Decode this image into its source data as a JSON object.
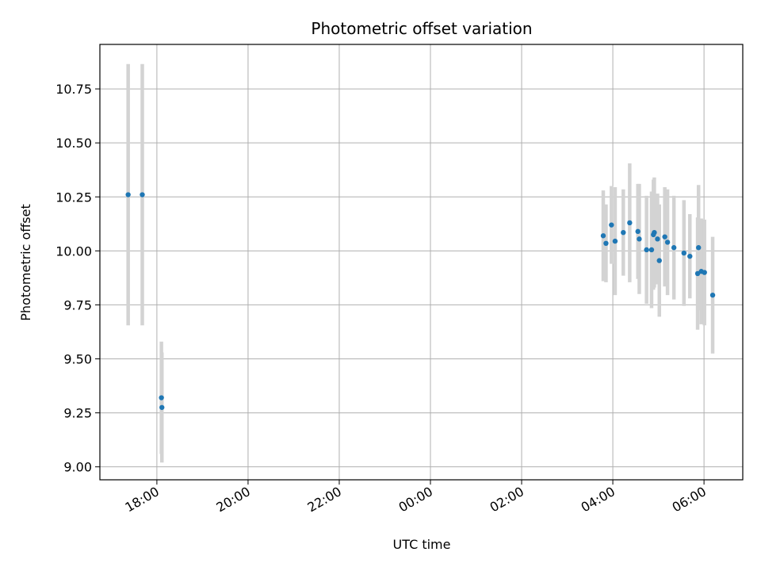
{
  "chart_data": {
    "type": "scatter",
    "title": "Photometric offset variation",
    "xlabel": "UTC time",
    "ylabel": "Photometric offset",
    "grid": true,
    "ylim": [
      8.94,
      10.956
    ],
    "xlim_hours": [
      -7.25,
      6.85
    ],
    "x_ticks": [
      {
        "hours": -6,
        "label": "18:00"
      },
      {
        "hours": -4,
        "label": "20:00"
      },
      {
        "hours": -2,
        "label": "22:00"
      },
      {
        "hours": 0,
        "label": "00:00"
      },
      {
        "hours": 2,
        "label": "02:00"
      },
      {
        "hours": 4,
        "label": "04:00"
      },
      {
        "hours": 6,
        "label": "06:00"
      }
    ],
    "y_ticks": [
      {
        "value": 9.0,
        "label": "9.00"
      },
      {
        "value": 9.25,
        "label": "9.25"
      },
      {
        "value": 9.5,
        "label": "9.50"
      },
      {
        "value": 9.75,
        "label": "9.75"
      },
      {
        "value": 10.0,
        "label": "10.00"
      },
      {
        "value": 10.25,
        "label": "10.25"
      },
      {
        "value": 10.5,
        "label": "10.50"
      },
      {
        "value": 10.75,
        "label": "10.75"
      }
    ],
    "marker_color": "#1f77b4",
    "errorbar_color": "#d3d3d3",
    "series": [
      {
        "name": "offset",
        "points": [
          {
            "hours": -6.63,
            "y": 10.26,
            "yerr": 0.605
          },
          {
            "hours": -6.32,
            "y": 10.26,
            "yerr": 0.605
          },
          {
            "hours": -5.9,
            "y": 9.32,
            "yerr": 0.26
          },
          {
            "hours": -5.89,
            "y": 9.275,
            "yerr": 0.255
          },
          {
            "hours": 3.79,
            "y": 10.07,
            "yerr": 0.21
          },
          {
            "hours": 3.85,
            "y": 10.035,
            "yerr": 0.18
          },
          {
            "hours": 3.97,
            "y": 10.12,
            "yerr": 0.18
          },
          {
            "hours": 4.05,
            "y": 10.045,
            "yerr": 0.25
          },
          {
            "hours": 4.23,
            "y": 10.085,
            "yerr": 0.2
          },
          {
            "hours": 4.37,
            "y": 10.13,
            "yerr": 0.275
          },
          {
            "hours": 4.55,
            "y": 10.09,
            "yerr": 0.22
          },
          {
            "hours": 4.58,
            "y": 10.055,
            "yerr": 0.255
          },
          {
            "hours": 4.74,
            "y": 10.005,
            "yerr": 0.25
          },
          {
            "hours": 4.85,
            "y": 10.005,
            "yerr": 0.27
          },
          {
            "hours": 4.89,
            "y": 10.075,
            "yerr": 0.255
          },
          {
            "hours": 4.91,
            "y": 10.085,
            "yerr": 0.255
          },
          {
            "hours": 4.98,
            "y": 10.055,
            "yerr": 0.21
          },
          {
            "hours": 5.02,
            "y": 9.955,
            "yerr": 0.26
          },
          {
            "hours": 5.14,
            "y": 10.065,
            "yerr": 0.23
          },
          {
            "hours": 5.2,
            "y": 10.04,
            "yerr": 0.245
          },
          {
            "hours": 5.34,
            "y": 10.015,
            "yerr": 0.24
          },
          {
            "hours": 5.56,
            "y": 9.99,
            "yerr": 0.245
          },
          {
            "hours": 5.69,
            "y": 9.975,
            "yerr": 0.195
          },
          {
            "hours": 5.86,
            "y": 9.895,
            "yerr": 0.26
          },
          {
            "hours": 5.88,
            "y": 10.015,
            "yerr": 0.29
          },
          {
            "hours": 5.94,
            "y": 9.905,
            "yerr": 0.245
          },
          {
            "hours": 6.01,
            "y": 9.9,
            "yerr": 0.245
          },
          {
            "hours": 6.19,
            "y": 9.795,
            "yerr": 0.27
          }
        ]
      }
    ]
  }
}
